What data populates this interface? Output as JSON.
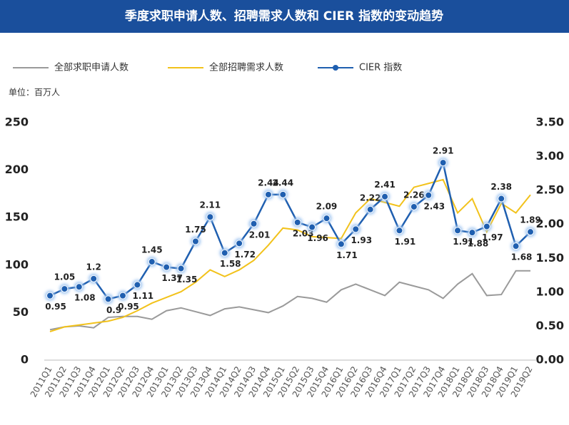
{
  "chart_data": {
    "type": "line",
    "title": "季度求职申请人数、招聘需求人数和 CIER 指数的变动趋势",
    "subtitle": "单位：百万人",
    "categories": [
      "2011Q1",
      "2011Q2",
      "2011Q3",
      "2011Q4",
      "2012Q1",
      "2012Q2",
      "2012Q3",
      "2012Q4",
      "2013Q1",
      "2013Q2",
      "2013Q3",
      "2013Q4",
      "2014Q1",
      "2014Q2",
      "2014Q3",
      "2014Q4",
      "2015Q1",
      "2015Q2",
      "2015Q3",
      "2015Q4",
      "2016Q1",
      "2016Q2",
      "2016Q3",
      "2016Q4",
      "2017Q1",
      "2017Q2",
      "2017Q3",
      "2017Q4",
      "2018Q1",
      "2018Q2",
      "2018Q3",
      "2018Q4",
      "2019Q1",
      "2019Q2"
    ],
    "series": [
      {
        "name": "全部求职申请人数",
        "color": "#9a9a9a",
        "values": [
          32,
          35,
          36,
          34,
          45,
          46,
          46,
          43,
          52,
          55,
          51,
          47,
          54,
          56,
          53,
          50,
          57,
          67,
          65,
          61,
          74,
          80,
          74,
          68,
          82,
          78,
          74,
          65,
          80,
          91,
          68,
          69,
          94,
          94
        ]
      },
      {
        "name": "全部招聘需求人数",
        "color": "#f2c21b",
        "values": [
          30,
          35,
          37,
          39,
          41,
          45,
          52,
          60,
          66,
          72,
          82,
          95,
          88,
          95,
          105,
          121,
          139,
          137,
          130,
          129,
          128,
          155,
          170,
          166,
          162,
          182,
          186,
          190,
          155,
          170,
          135,
          165,
          155,
          174
        ]
      },
      {
        "name": "CIER 指数",
        "color": "#1f5fb0",
        "axis": "y2",
        "values": [
          0.95,
          1.05,
          1.08,
          1.2,
          0.9,
          0.95,
          1.11,
          1.45,
          1.37,
          1.35,
          1.75,
          2.11,
          1.58,
          1.72,
          2.01,
          2.44,
          2.44,
          2.03,
          1.96,
          2.09,
          1.71,
          1.93,
          2.22,
          2.41,
          1.91,
          2.26,
          2.43,
          2.91,
          1.91,
          1.88,
          1.97,
          2.38,
          1.68,
          1.89
        ]
      }
    ],
    "ylim": [
      0,
      250
    ],
    "yticks": [
      0,
      50,
      100,
      150,
      200,
      250
    ],
    "y2lim": [
      0,
      3.5
    ],
    "y2ticks": [
      {
        "value": 0,
        "label": "0.00"
      },
      {
        "value": 0.5,
        "label": "0.50"
      },
      {
        "value": 1,
        "label": "1.00"
      },
      {
        "value": 1.5,
        "label": "1.50"
      },
      {
        "value": 2,
        "label": "2.00"
      },
      {
        "value": 2.5,
        "label": "2.50"
      },
      {
        "value": 3,
        "label": "3.00"
      },
      {
        "value": 3.5,
        "label": "3.50"
      }
    ],
    "legend": "top"
  }
}
